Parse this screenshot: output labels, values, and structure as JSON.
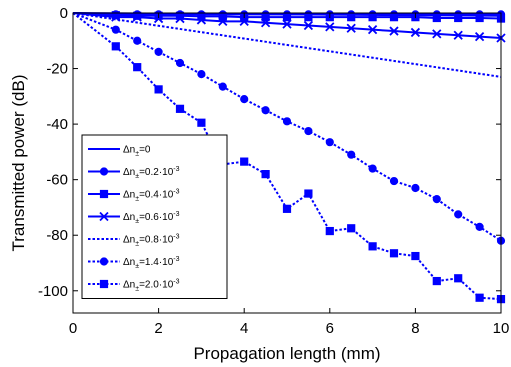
{
  "chart_data": {
    "type": "line",
    "title": "",
    "xlabel": "Propagation length (mm)",
    "ylabel": "Transmitted power (dB)",
    "xlim": [
      0,
      10
    ],
    "ylim": [
      -108,
      0
    ],
    "xticks": [
      0,
      2,
      4,
      6,
      8,
      10
    ],
    "yticks": [
      0,
      -20,
      -40,
      -60,
      -80,
      -100
    ],
    "xtick_labels": [
      "0",
      "2",
      "4",
      "6",
      "8",
      "10"
    ],
    "ytick_labels": [
      "0",
      "-20",
      "-40",
      "-60",
      "-80",
      "-100"
    ],
    "grid": false,
    "legend_position": "bottom-left",
    "line_color": "#0000ff",
    "series": [
      {
        "name": "Δn±=0",
        "legend": {
          "base": "Δn",
          "sub": "±",
          "rest": "=0",
          "sup": ""
        },
        "style": "solid",
        "marker": "none",
        "x": [
          0,
          10
        ],
        "y": [
          0,
          -1
        ]
      },
      {
        "name": "Δn±=0.2·10^-3",
        "legend": {
          "base": "Δn",
          "sub": "±",
          "rest": "=0.2·10",
          "sup": "-3"
        },
        "style": "solid",
        "marker": "circle",
        "x": [
          0,
          1,
          1.5,
          2,
          2.5,
          3,
          3.5,
          4,
          4.5,
          5,
          5.5,
          6,
          6.5,
          7,
          7.5,
          8,
          8.5,
          9,
          9.5,
          10
        ],
        "y": [
          0,
          -0.5,
          -0.5,
          -0.5,
          -0.5,
          -0.5,
          -0.5,
          -0.5,
          -0.5,
          -0.5,
          -0.5,
          -0.5,
          -0.5,
          -0.5,
          -0.5,
          -0.5,
          -0.5,
          -0.5,
          -0.5,
          -0.5
        ]
      },
      {
        "name": "Δn±=0.4·10^-3",
        "legend": {
          "base": "Δn",
          "sub": "±",
          "rest": "=0.4·10",
          "sup": "-3"
        },
        "style": "solid",
        "marker": "square",
        "x": [
          0,
          1,
          1.5,
          2,
          2.5,
          3,
          3.5,
          4,
          4.5,
          5,
          5.5,
          6,
          6.5,
          7,
          7.5,
          8,
          8.5,
          9,
          9.5,
          10
        ],
        "y": [
          0,
          -0.8,
          -1,
          -1,
          -1,
          -1.2,
          -1.2,
          -1.5,
          -1.5,
          -1.5,
          -1.5,
          -1.5,
          -1.5,
          -1.5,
          -1.5,
          -1.5,
          -1.8,
          -1.8,
          -1.8,
          -2
        ]
      },
      {
        "name": "Δn±=0.6·10^-3",
        "legend": {
          "base": "Δn",
          "sub": "±",
          "rest": "=0.6·10",
          "sup": "-3"
        },
        "style": "solid",
        "marker": "x",
        "x": [
          0,
          1,
          1.5,
          2,
          2.5,
          3,
          3.5,
          4,
          4.5,
          5,
          5.5,
          6,
          6.5,
          7,
          7.5,
          8,
          8.5,
          9,
          9.5,
          10
        ],
        "y": [
          0,
          -1.5,
          -1.5,
          -2,
          -2,
          -2.5,
          -3,
          -3,
          -3.5,
          -4,
          -4.5,
          -5,
          -5.5,
          -6,
          -6.5,
          -7,
          -7.5,
          -8,
          -8.5,
          -9
        ]
      },
      {
        "name": "Δn±=0.8·10^-3",
        "legend": {
          "base": "Δn",
          "sub": "±",
          "rest": "=0.8·10",
          "sup": "-3"
        },
        "style": "dotted",
        "marker": "none",
        "x": [
          0,
          10
        ],
        "y": [
          0,
          -23
        ]
      },
      {
        "name": "Δn±=1.4·10^-3",
        "legend": {
          "base": "Δn",
          "sub": "±",
          "rest": "=1.4·10",
          "sup": "-3"
        },
        "style": "dotted",
        "marker": "circle",
        "x": [
          0,
          1,
          1.5,
          2,
          2.5,
          3,
          3.5,
          4,
          4.5,
          5,
          5.5,
          6,
          6.5,
          7,
          7.5,
          8,
          8.5,
          9,
          9.5,
          10
        ],
        "y": [
          0,
          -6,
          -10,
          -14,
          -18,
          -22,
          -26.5,
          -31,
          -35,
          -39,
          -42.5,
          -46.5,
          -51,
          -56,
          -60.5,
          -63,
          -67,
          -72.5,
          -77,
          -82
        ]
      },
      {
        "name": "Δn±=2.0·10^-3",
        "legend": {
          "base": "Δn",
          "sub": "±",
          "rest": "=2.0·10",
          "sup": "-3"
        },
        "style": "dotted",
        "marker": "square",
        "x": [
          0,
          1,
          1.5,
          2,
          2.5,
          3,
          3.5,
          4,
          4.5,
          5,
          5.5,
          6,
          6.5,
          7,
          7.5,
          8,
          8.5,
          9,
          9.5,
          10
        ],
        "y": [
          0,
          -12,
          -19.5,
          -27.5,
          -34.5,
          -39.5,
          -54.5,
          -53.5,
          -58,
          -70.5,
          -65,
          -78.5,
          -77.5,
          -84,
          -86.5,
          -87.5,
          -96.5,
          -95.5,
          -102.5,
          -103
        ]
      }
    ]
  }
}
